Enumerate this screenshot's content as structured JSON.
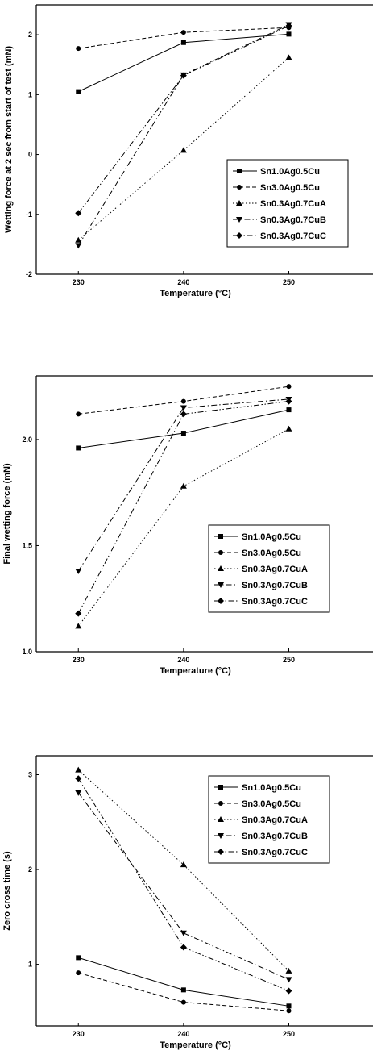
{
  "chart_data": [
    {
      "type": "line",
      "xlabel": "Temperature (°C)",
      "ylabel": "Wetting force at 2 sec from start of test (mN)",
      "x": [
        230,
        240,
        250
      ],
      "xlim": [
        226,
        258
      ],
      "ylim": [
        -2,
        2.5
      ],
      "yticks": [
        -2,
        -1,
        0,
        1,
        2
      ],
      "grid": false,
      "legend_position": "lower-right",
      "series": [
        {
          "name": "Sn1.0Ag0.5Cu",
          "values": [
            1.05,
            1.87,
            2.01
          ],
          "marker": "square",
          "dash": "solid"
        },
        {
          "name": "Sn3.0Ag0.5Cu",
          "values": [
            1.77,
            2.04,
            2.12
          ],
          "marker": "circle",
          "dash": "dashed"
        },
        {
          "name": "Sn0.3Ag0.7CuA",
          "values": [
            -1.43,
            0.07,
            1.62
          ],
          "marker": "triangle-up",
          "dash": "dotted"
        },
        {
          "name": "Sn0.3Ag0.7CuB",
          "values": [
            -1.52,
            1.33,
            2.17
          ],
          "marker": "triangle-down",
          "dash": "dashdot"
        },
        {
          "name": "Sn0.3Ag0.7CuC",
          "values": [
            -0.98,
            1.32,
            2.15
          ],
          "marker": "diamond",
          "dash": "dashdotdot"
        }
      ]
    },
    {
      "type": "line",
      "xlabel": "Temperature (°C)",
      "ylabel": "Final wetting force (mN)",
      "x": [
        230,
        240,
        250
      ],
      "xlim": [
        226,
        258
      ],
      "ylim": [
        1.0,
        2.3
      ],
      "yticks": [
        1.0,
        1.5,
        2.0
      ],
      "grid": false,
      "legend_position": "lower-right",
      "series": [
        {
          "name": "Sn1.0Ag0.5Cu",
          "values": [
            1.96,
            2.03,
            2.14
          ],
          "marker": "square",
          "dash": "solid"
        },
        {
          "name": "Sn3.0Ag0.5Cu",
          "values": [
            2.12,
            2.18,
            2.25
          ],
          "marker": "circle",
          "dash": "dashed"
        },
        {
          "name": "Sn0.3Ag0.7CuA",
          "values": [
            1.12,
            1.78,
            2.05
          ],
          "marker": "triangle-up",
          "dash": "dotted"
        },
        {
          "name": "Sn0.3Ag0.7CuB",
          "values": [
            1.38,
            2.15,
            2.19
          ],
          "marker": "triangle-down",
          "dash": "dashdot"
        },
        {
          "name": "Sn0.3Ag0.7CuC",
          "values": [
            1.18,
            2.12,
            2.18
          ],
          "marker": "diamond",
          "dash": "dashdotdot"
        }
      ]
    },
    {
      "type": "line",
      "xlabel": "Temperature (°C)",
      "ylabel": "Zero cross time (s)",
      "x": [
        230,
        240,
        250
      ],
      "xlim": [
        226,
        258
      ],
      "ylim": [
        0.35,
        3.2
      ],
      "yticks": [
        1,
        2,
        3
      ],
      "grid": false,
      "legend_position": "upper-right",
      "series": [
        {
          "name": "Sn1.0Ag0.5Cu",
          "values": [
            1.07,
            0.73,
            0.56
          ],
          "marker": "square",
          "dash": "solid"
        },
        {
          "name": "Sn3.0Ag0.5Cu",
          "values": [
            0.91,
            0.6,
            0.51
          ],
          "marker": "circle",
          "dash": "dashed"
        },
        {
          "name": "Sn0.3Ag0.7CuA",
          "values": [
            3.05,
            2.05,
            0.93
          ],
          "marker": "triangle-up",
          "dash": "dotted"
        },
        {
          "name": "Sn0.3Ag0.7CuB",
          "values": [
            2.81,
            1.33,
            0.84
          ],
          "marker": "triangle-down",
          "dash": "dashdot"
        },
        {
          "name": "Sn0.3Ag0.7CuC",
          "values": [
            2.96,
            1.18,
            0.72
          ],
          "marker": "diamond",
          "dash": "dashdotdot"
        }
      ]
    }
  ]
}
